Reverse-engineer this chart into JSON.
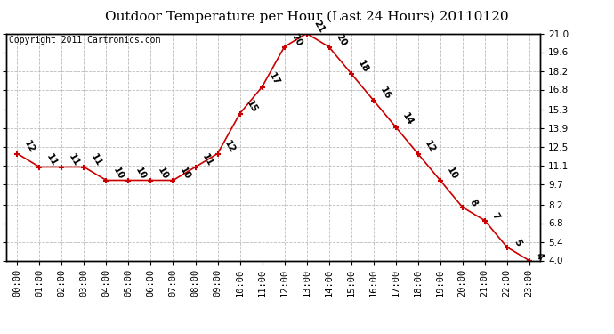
{
  "title": "Outdoor Temperature per Hour (Last 24 Hours) 20110120",
  "copyright": "Copyright 2011 Cartronics.com",
  "hours": [
    "00:00",
    "01:00",
    "02:00",
    "03:00",
    "04:00",
    "05:00",
    "06:00",
    "07:00",
    "08:00",
    "09:00",
    "10:00",
    "11:00",
    "12:00",
    "13:00",
    "14:00",
    "15:00",
    "16:00",
    "17:00",
    "18:00",
    "19:00",
    "20:00",
    "21:00",
    "22:00",
    "23:00"
  ],
  "temps": [
    12,
    11,
    11,
    11,
    10,
    10,
    10,
    10,
    11,
    12,
    15,
    17,
    20,
    21,
    20,
    18,
    16,
    14,
    12,
    10,
    8,
    7,
    5,
    4
  ],
  "ylim": [
    4.0,
    21.0
  ],
  "yticks": [
    4.0,
    5.4,
    6.8,
    8.2,
    9.7,
    11.1,
    12.5,
    13.9,
    15.3,
    16.8,
    18.2,
    19.6,
    21.0
  ],
  "line_color": "#cc0000",
  "marker_color": "#cc0000",
  "bg_color": "#ffffff",
  "grid_color": "#bbbbbb",
  "title_fontsize": 11,
  "copyright_fontsize": 7,
  "label_fontsize": 7.5,
  "tick_fontsize": 7.5
}
